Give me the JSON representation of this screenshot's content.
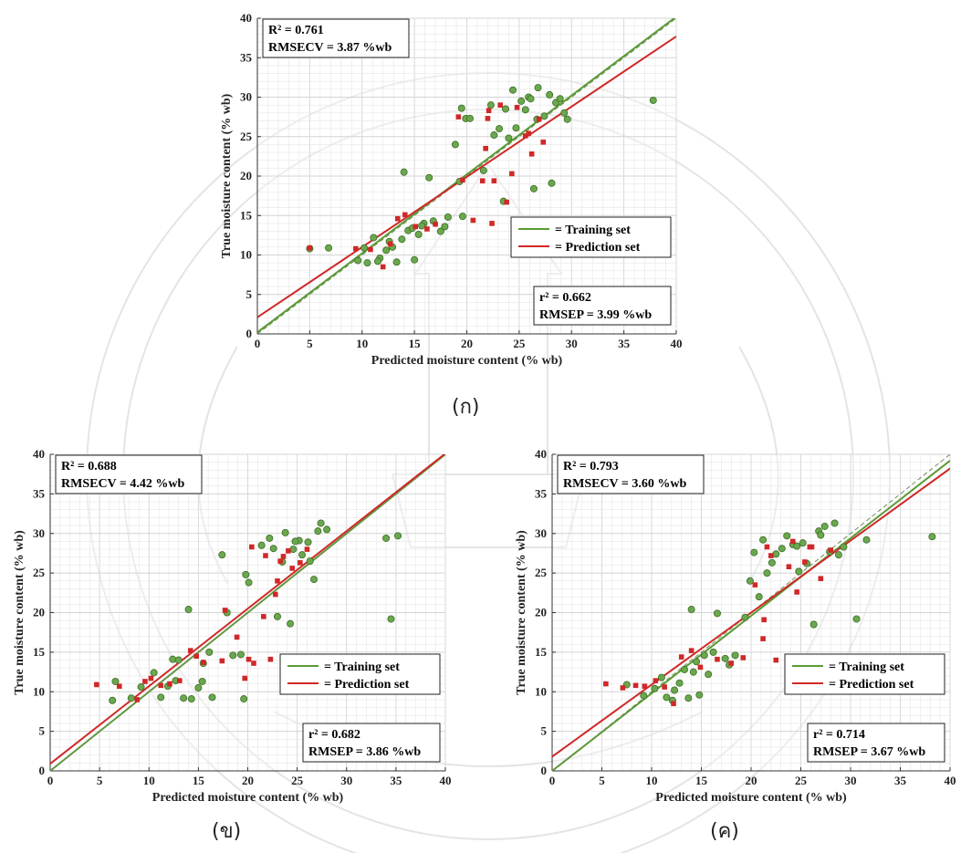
{
  "colors": {
    "training": "#5a9a34",
    "training_marker": "#6aa84f",
    "prediction": "#d02828",
    "grid": "#e6e6e6",
    "watermark": "#c9c9c9"
  },
  "chart_data": [
    {
      "type": "scatter",
      "panel_label": "(ก)",
      "xlabel": "Predicted moisture content (% wb)",
      "ylabel": "True moisture content (% wb)",
      "xlim": [
        0,
        40
      ],
      "ylim": [
        0,
        40
      ],
      "x_ticks": [
        "0",
        "5",
        "10",
        "15",
        "20",
        "25",
        "30",
        "35",
        "40"
      ],
      "y_ticks": [
        "0",
        "5",
        "10",
        "15",
        "20",
        "25",
        "30",
        "35",
        "40"
      ],
      "grid": true,
      "legend_position": "bottom-right",
      "legend": [
        "= Training set",
        "= Prediction set"
      ],
      "stats_top": {
        "r2": "R² = 0.761",
        "rmse": "RMSECV = 3.87 %wb"
      },
      "stats_bottom": {
        "r2": "r² = 0.662",
        "rmse": "RMSEP = 3.99 %wb"
      },
      "training_fit": {
        "slope": 1.0,
        "intercept": 0.2
      },
      "prediction_fit": {
        "slope": 0.89,
        "intercept": 2.1
      },
      "training_points": [
        [
          5,
          10.8
        ],
        [
          6.8,
          10.9
        ],
        [
          9.6,
          9.3
        ],
        [
          10.2,
          10.9
        ],
        [
          10.5,
          9.0
        ],
        [
          11.1,
          12.2
        ],
        [
          11.7,
          9.6
        ],
        [
          12.3,
          10.6
        ],
        [
          12.6,
          11.7
        ],
        [
          13.3,
          9.1
        ],
        [
          13.8,
          12.0
        ],
        [
          14.0,
          20.5
        ],
        [
          14.4,
          13.1
        ],
        [
          15.0,
          9.4
        ],
        [
          15.4,
          12.6
        ],
        [
          15.9,
          14.0
        ],
        [
          16.4,
          19.8
        ],
        [
          16.8,
          14.3
        ],
        [
          17.5,
          13.0
        ],
        [
          18.2,
          14.8
        ],
        [
          19.3,
          19.3
        ],
        [
          19.6,
          14.9
        ],
        [
          19.5,
          28.6
        ],
        [
          19.9,
          27.3
        ],
        [
          20.3,
          27.3
        ],
        [
          18.9,
          24.0
        ],
        [
          21.6,
          20.7
        ],
        [
          22.3,
          29.0
        ],
        [
          23.1,
          26.0
        ],
        [
          23.5,
          16.8
        ],
        [
          23.7,
          28.5
        ],
        [
          24.0,
          24.8
        ],
        [
          24.4,
          30.9
        ],
        [
          24.7,
          26.1
        ],
        [
          25.2,
          29.5
        ],
        [
          25.6,
          28.4
        ],
        [
          25.9,
          30.0
        ],
        [
          26.1,
          29.8
        ],
        [
          26.4,
          18.4
        ],
        [
          26.8,
          31.2
        ],
        [
          27.4,
          27.6
        ],
        [
          27.9,
          30.3
        ],
        [
          28.1,
          19.1
        ],
        [
          28.5,
          29.3
        ],
        [
          28.9,
          29.8
        ],
        [
          29.3,
          28.0
        ],
        [
          29.6,
          27.2
        ],
        [
          37.8,
          29.6
        ],
        [
          11.5,
          9.2
        ],
        [
          12.9,
          11.0
        ],
        [
          14.8,
          13.4
        ],
        [
          17.9,
          13.6
        ],
        [
          15.7,
          13.7
        ],
        [
          22.6,
          25.2
        ],
        [
          26.7,
          27.2
        ]
      ],
      "prediction_points": [
        [
          5,
          10.9
        ],
        [
          9.4,
          10.8
        ],
        [
          10.8,
          10.7
        ],
        [
          12.0,
          8.5
        ],
        [
          12.7,
          11.4
        ],
        [
          13.4,
          14.6
        ],
        [
          14.1,
          15.1
        ],
        [
          15.1,
          13.6
        ],
        [
          16.2,
          13.3
        ],
        [
          17.0,
          13.9
        ],
        [
          19.2,
          27.5
        ],
        [
          19.6,
          19.5
        ],
        [
          20.6,
          14.4
        ],
        [
          21.8,
          23.5
        ],
        [
          22.0,
          27.3
        ],
        [
          22.6,
          19.4
        ],
        [
          23.2,
          29.0
        ],
        [
          23.8,
          16.7
        ],
        [
          24.3,
          20.3
        ],
        [
          24.8,
          28.7
        ],
        [
          25.6,
          25.1
        ],
        [
          26.2,
          22.8
        ],
        [
          26.9,
          27.2
        ],
        [
          27.3,
          24.3
        ],
        [
          22.1,
          28.3
        ],
        [
          21.5,
          19.4
        ],
        [
          22.4,
          14.0
        ],
        [
          25.9,
          25.4
        ]
      ]
    },
    {
      "type": "scatter",
      "panel_label": "(ข)",
      "xlabel": "Predicted moisture content (% wb)",
      "ylabel": "True moisture content (% wb)",
      "xlim": [
        0,
        40
      ],
      "ylim": [
        0,
        40
      ],
      "x_ticks": [
        "0",
        "5",
        "10",
        "15",
        "20",
        "25",
        "30",
        "35",
        "40"
      ],
      "y_ticks": [
        "0",
        "5",
        "10",
        "15",
        "20",
        "25",
        "30",
        "35",
        "40"
      ],
      "grid": true,
      "legend_position": "bottom-right",
      "legend": [
        "= Training set",
        "= Prediction set"
      ],
      "stats_top": {
        "r2": "R² = 0.688",
        "rmse": "RMSECV = 4.42 %wb"
      },
      "stats_bottom": {
        "r2": "r² = 0.682",
        "rmse": "RMSEP = 3.86 %wb"
      },
      "training_fit": {
        "slope": 1.0,
        "intercept": 0.0
      },
      "prediction_fit": {
        "slope": 0.98,
        "intercept": 0.9
      },
      "training_points": [
        [
          6.3,
          8.9
        ],
        [
          6.6,
          11.3
        ],
        [
          8.2,
          9.2
        ],
        [
          9.2,
          10.6
        ],
        [
          10.5,
          12.4
        ],
        [
          11.2,
          9.3
        ],
        [
          11.9,
          10.7
        ],
        [
          12.4,
          14.1
        ],
        [
          13.0,
          14.0
        ],
        [
          13.5,
          9.2
        ],
        [
          14.0,
          20.4
        ],
        [
          14.3,
          9.1
        ],
        [
          15.0,
          10.5
        ],
        [
          15.4,
          11.3
        ],
        [
          16.1,
          15.0
        ],
        [
          16.4,
          9.3
        ],
        [
          17.4,
          27.3
        ],
        [
          17.9,
          20.0
        ],
        [
          18.5,
          14.6
        ],
        [
          19.3,
          14.7
        ],
        [
          19.6,
          9.1
        ],
        [
          19.8,
          24.8
        ],
        [
          20.1,
          23.8
        ],
        [
          21.4,
          28.5
        ],
        [
          22.2,
          29.4
        ],
        [
          23.0,
          19.5
        ],
        [
          23.5,
          26.4
        ],
        [
          23.8,
          30.1
        ],
        [
          24.3,
          18.6
        ],
        [
          24.6,
          28.0
        ],
        [
          25.2,
          29.1
        ],
        [
          25.5,
          27.3
        ],
        [
          26.1,
          28.9
        ],
        [
          26.7,
          24.2
        ],
        [
          27.1,
          30.3
        ],
        [
          27.4,
          31.3
        ],
        [
          28.0,
          30.5
        ],
        [
          34.0,
          29.4
        ],
        [
          34.5,
          19.2
        ],
        [
          35.2,
          29.7
        ],
        [
          12.7,
          11.4
        ],
        [
          15.5,
          13.6
        ],
        [
          22.6,
          28.1
        ],
        [
          24.8,
          29.0
        ],
        [
          26.3,
          26.5
        ]
      ],
      "prediction_points": [
        [
          4.7,
          10.9
        ],
        [
          7.0,
          10.7
        ],
        [
          8.8,
          9.0
        ],
        [
          9.6,
          11.3
        ],
        [
          10.2,
          11.7
        ],
        [
          11.2,
          10.8
        ],
        [
          12.1,
          11.0
        ],
        [
          13.1,
          11.4
        ],
        [
          14.2,
          15.2
        ],
        [
          14.8,
          14.5
        ],
        [
          15.5,
          13.7
        ],
        [
          17.4,
          13.9
        ],
        [
          17.7,
          20.3
        ],
        [
          18.9,
          16.9
        ],
        [
          19.7,
          11.7
        ],
        [
          20.1,
          14.1
        ],
        [
          20.4,
          28.3
        ],
        [
          21.6,
          19.5
        ],
        [
          21.8,
          27.2
        ],
        [
          22.3,
          14.1
        ],
        [
          22.8,
          22.3
        ],
        [
          23.3,
          26.5
        ],
        [
          23.6,
          27.1
        ],
        [
          24.1,
          27.8
        ],
        [
          24.5,
          25.6
        ],
        [
          25.3,
          26.3
        ],
        [
          26.0,
          28.0
        ],
        [
          20.6,
          13.6
        ],
        [
          23.0,
          24.0
        ]
      ]
    },
    {
      "type": "scatter",
      "panel_label": "(ค)",
      "xlabel": "Predicted moisture content (% wb)",
      "ylabel": "True moisture content (% wb)",
      "xlim": [
        0,
        40
      ],
      "ylim": [
        0,
        40
      ],
      "x_ticks": [
        "0",
        "5",
        "10",
        "15",
        "20",
        "25",
        "30",
        "35",
        "40"
      ],
      "y_ticks": [
        "0",
        "5",
        "10",
        "15",
        "20",
        "25",
        "30",
        "35",
        "40"
      ],
      "grid": true,
      "legend_position": "bottom-right",
      "legend": [
        "= Training set",
        "= Prediction set"
      ],
      "stats_top": {
        "r2": "R² = 0.793",
        "rmse": "RMSECV = 3.60 %wb"
      },
      "stats_bottom": {
        "r2": "r² = 0.714",
        "rmse": "RMSEP = 3.67 %wb"
      },
      "training_fit": {
        "slope": 0.98,
        "intercept": 0.0
      },
      "prediction_fit": {
        "slope": 0.91,
        "intercept": 1.8
      },
      "training_points": [
        [
          7.5,
          10.9
        ],
        [
          9.2,
          9.5
        ],
        [
          10.3,
          10.4
        ],
        [
          11.0,
          11.8
        ],
        [
          11.5,
          9.3
        ],
        [
          12.3,
          10.2
        ],
        [
          12.8,
          11.1
        ],
        [
          13.3,
          12.8
        ],
        [
          13.7,
          9.2
        ],
        [
          14.0,
          20.4
        ],
        [
          14.5,
          13.8
        ],
        [
          14.8,
          9.6
        ],
        [
          15.3,
          14.6
        ],
        [
          15.7,
          12.2
        ],
        [
          16.2,
          15.0
        ],
        [
          16.6,
          19.9
        ],
        [
          17.4,
          14.2
        ],
        [
          18.4,
          14.6
        ],
        [
          19.4,
          19.4
        ],
        [
          19.9,
          24.0
        ],
        [
          20.3,
          27.6
        ],
        [
          20.8,
          22.0
        ],
        [
          21.2,
          29.2
        ],
        [
          21.6,
          25.0
        ],
        [
          22.5,
          27.4
        ],
        [
          23.1,
          28.1
        ],
        [
          23.6,
          29.7
        ],
        [
          24.2,
          28.6
        ],
        [
          24.8,
          25.2
        ],
        [
          25.2,
          28.8
        ],
        [
          25.6,
          26.2
        ],
        [
          26.3,
          18.5
        ],
        [
          26.8,
          30.3
        ],
        [
          27.4,
          30.9
        ],
        [
          27.9,
          27.7
        ],
        [
          28.4,
          31.3
        ],
        [
          28.8,
          27.3
        ],
        [
          29.3,
          28.3
        ],
        [
          30.6,
          19.2
        ],
        [
          31.6,
          29.2
        ],
        [
          38.2,
          29.6
        ],
        [
          12.1,
          8.9
        ],
        [
          14.2,
          12.5
        ],
        [
          17.8,
          13.4
        ],
        [
          22.1,
          26.3
        ],
        [
          24.6,
          28.4
        ],
        [
          27.0,
          29.8
        ]
      ],
      "prediction_points": [
        [
          5.4,
          11.0
        ],
        [
          7.1,
          10.5
        ],
        [
          8.4,
          10.8
        ],
        [
          9.3,
          10.7
        ],
        [
          10.4,
          11.4
        ],
        [
          11.3,
          10.6
        ],
        [
          12.2,
          8.5
        ],
        [
          13.0,
          14.4
        ],
        [
          14.0,
          15.2
        ],
        [
          14.9,
          13.1
        ],
        [
          16.6,
          14.1
        ],
        [
          18.0,
          13.6
        ],
        [
          19.2,
          14.3
        ],
        [
          20.4,
          23.5
        ],
        [
          21.2,
          16.7
        ],
        [
          21.6,
          28.3
        ],
        [
          22.0,
          27.2
        ],
        [
          22.5,
          14.0
        ],
        [
          23.8,
          25.8
        ],
        [
          24.2,
          29.0
        ],
        [
          24.6,
          22.6
        ],
        [
          25.4,
          26.4
        ],
        [
          26.1,
          28.3
        ],
        [
          27.0,
          24.3
        ],
        [
          28.0,
          27.9
        ],
        [
          21.3,
          19.1
        ],
        [
          25.9,
          28.3
        ]
      ]
    }
  ]
}
